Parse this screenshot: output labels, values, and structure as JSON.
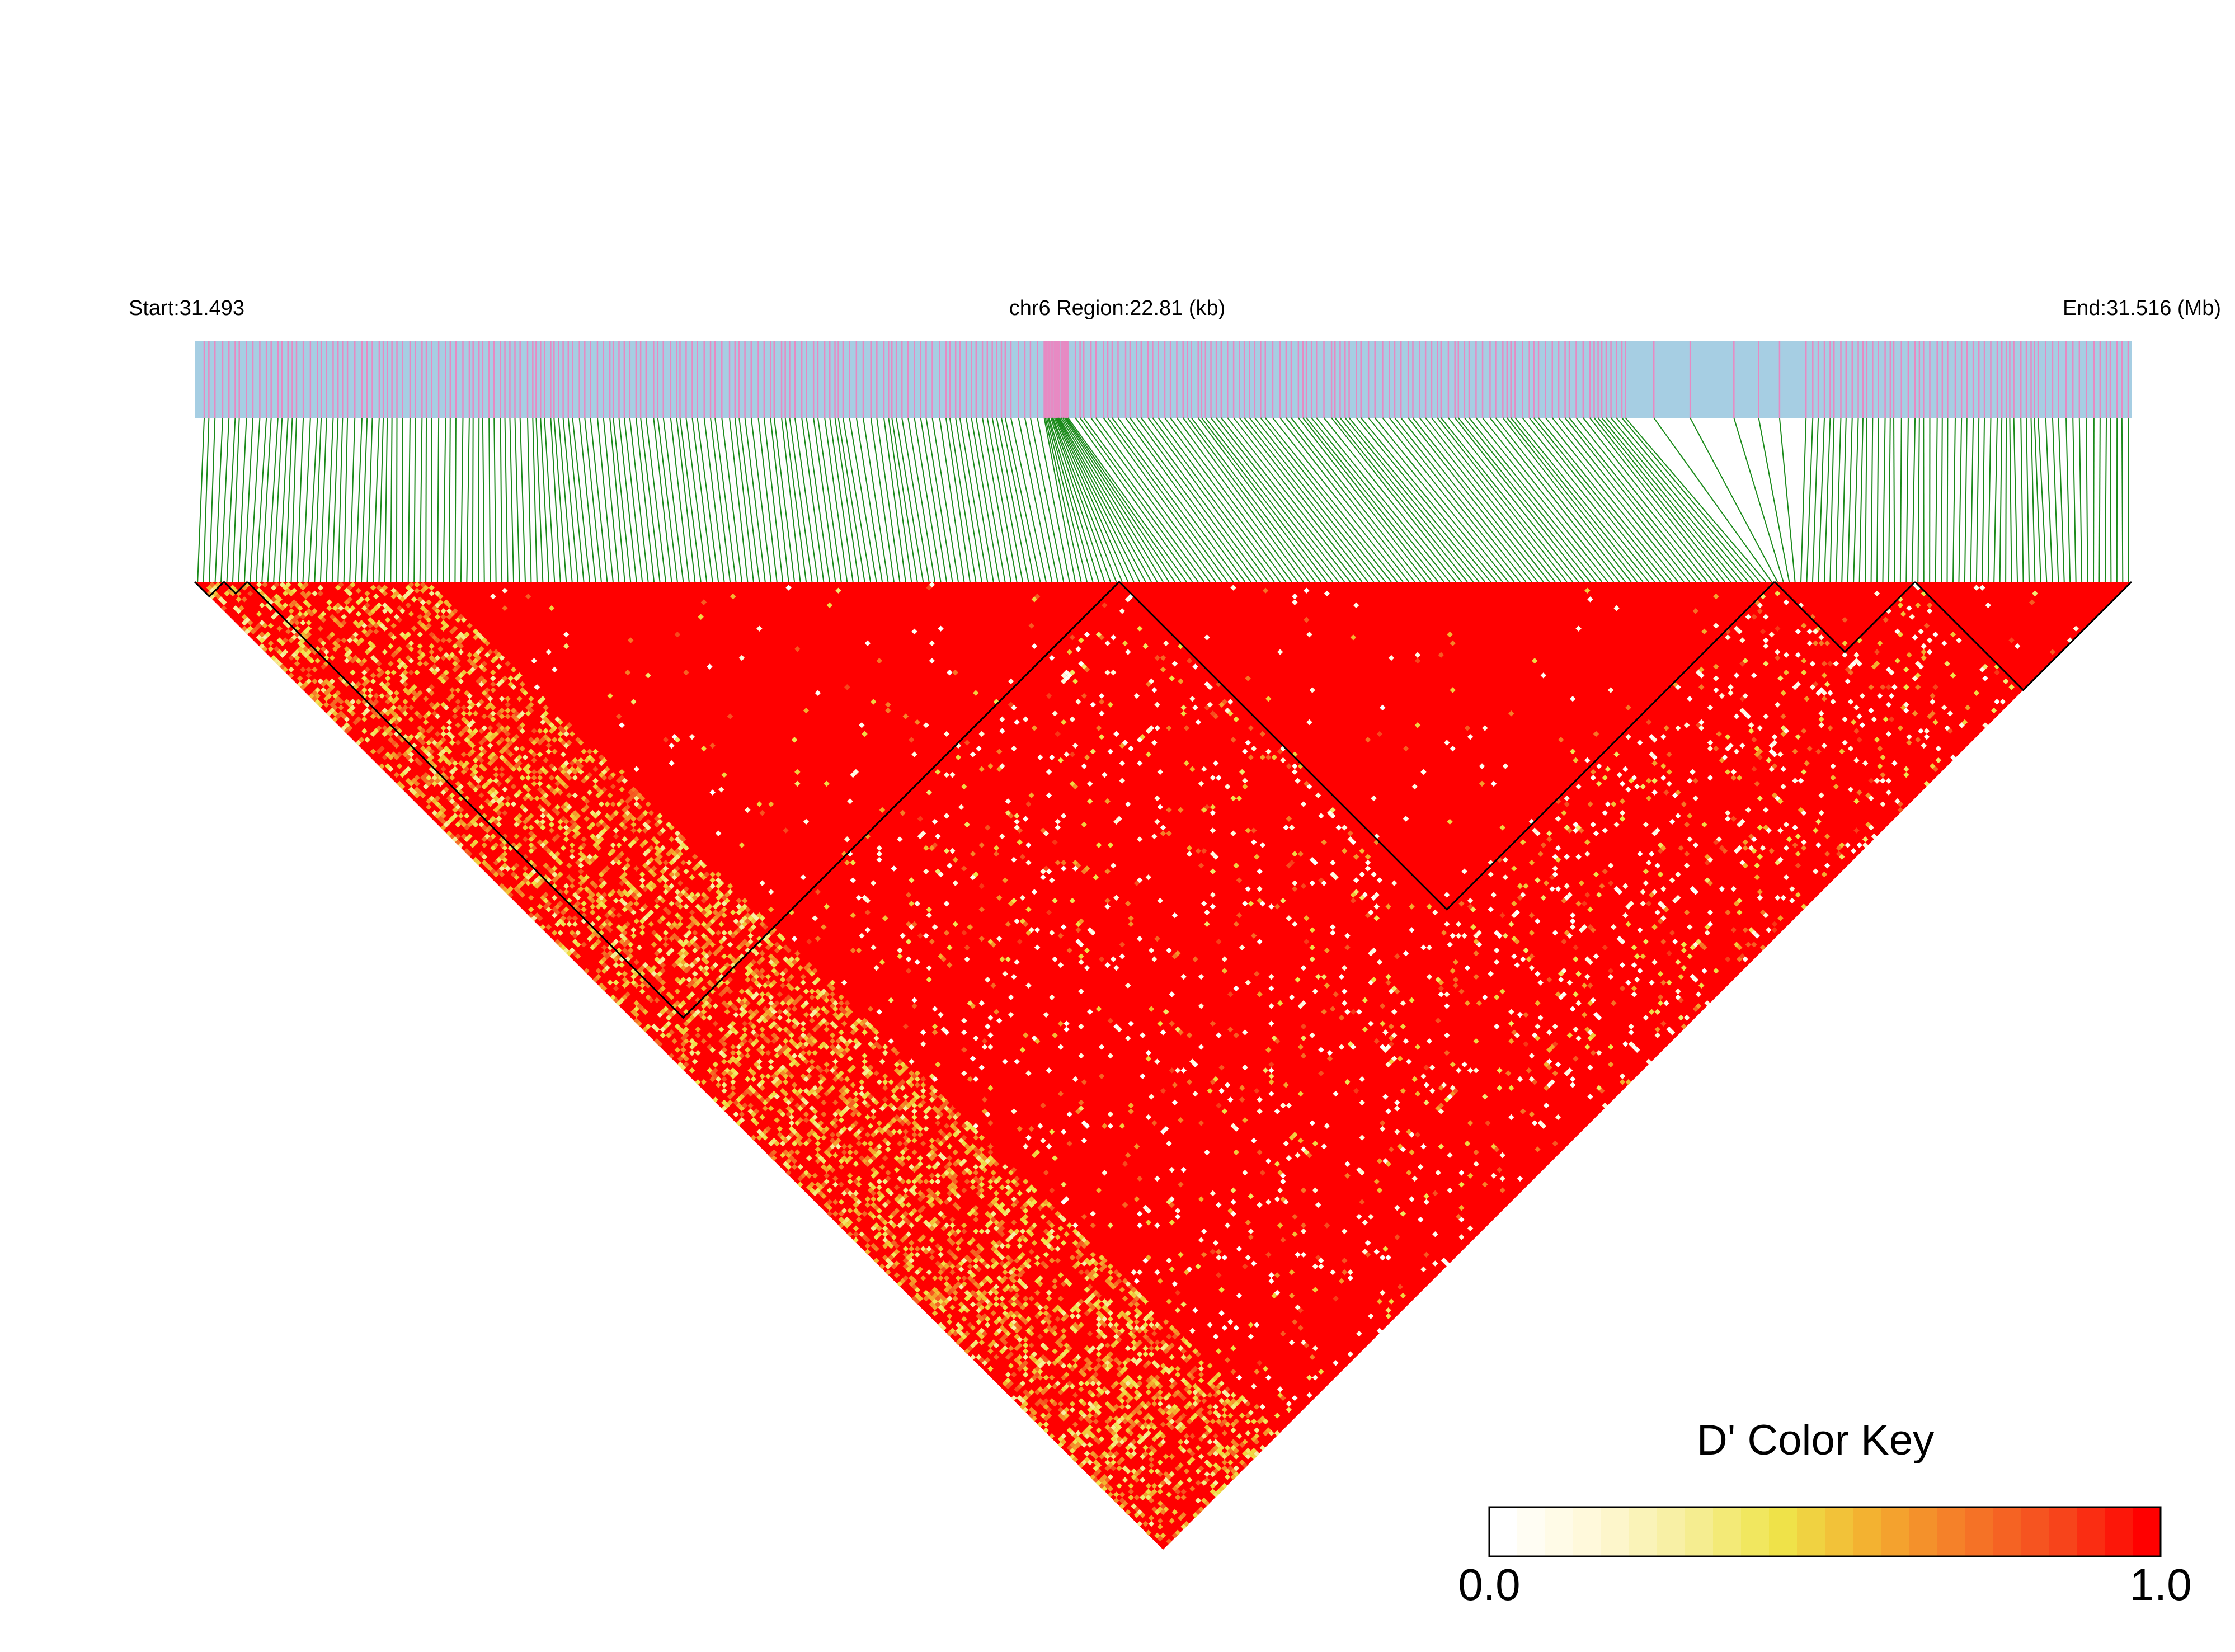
{
  "header": {
    "start_label": "Start:31.493",
    "region_label": "chr6 Region:22.81 (kb)",
    "end_label": "End:31.516 (Mb)"
  },
  "colors": {
    "track_bg": "#a6cee3",
    "snp_mark": "#e78ac3",
    "connector": "#1a8a1a",
    "high_ld": "#ff0000",
    "block_outline": "#000000"
  },
  "legend": {
    "title": "D' Color Key",
    "min_label": "0.0",
    "max_label": "1.0",
    "stops": [
      "#ffffff",
      "#fff8d8",
      "#f6ee9a",
      "#efe44a",
      "#f3b030",
      "#f57a28",
      "#f64a1e",
      "#ff0000"
    ]
  },
  "chart_data": {
    "type": "heatmap",
    "chromosome": "chr6",
    "start_mb": 31.493,
    "end_mb": 31.516,
    "region_kb": 22.81,
    "metric": "D'",
    "value_range": [
      0.0,
      1.0
    ],
    "haplotype_blocks_snp_index": [
      [
        0,
        4
      ],
      [
        5,
        8
      ],
      [
        9,
        157
      ],
      [
        158,
        269
      ],
      [
        270,
        293
      ],
      [
        294,
        330
      ]
    ]
  }
}
